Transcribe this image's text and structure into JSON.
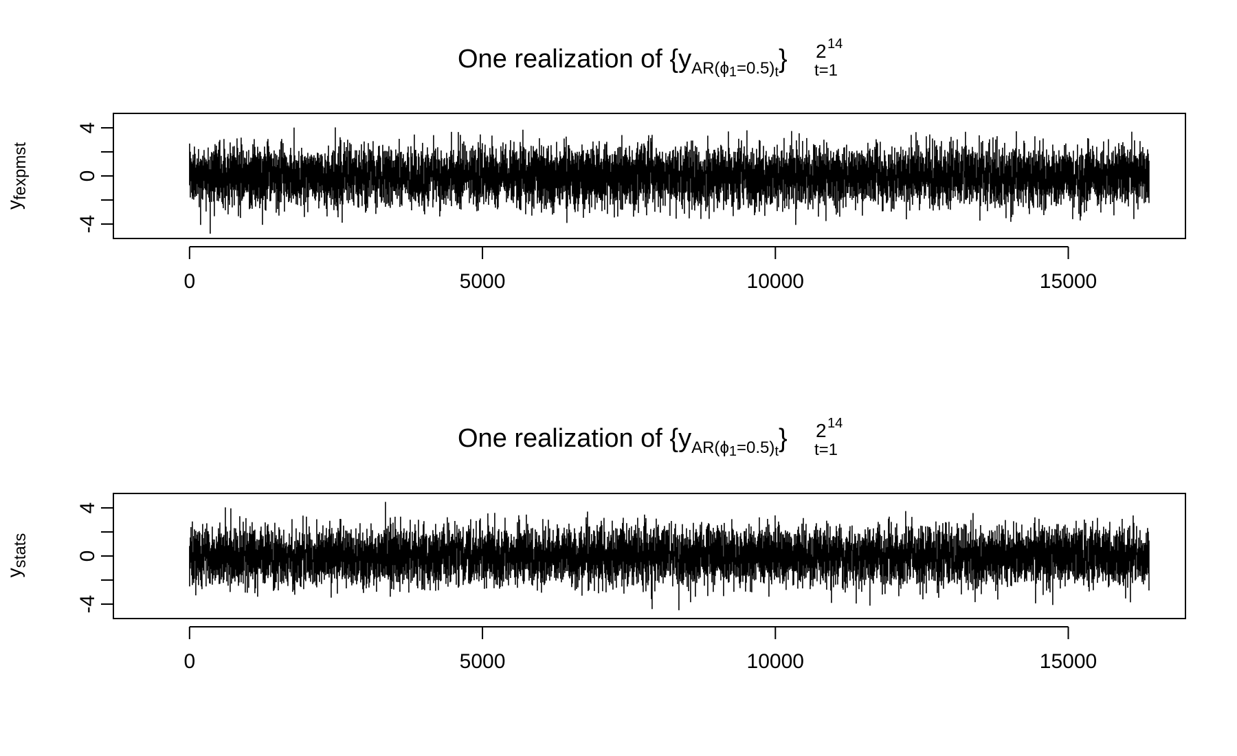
{
  "chart_data": [
    {
      "type": "line",
      "title": {
        "prefix": "One realization of {y",
        "subscript": "AR(",
        "phi": "ϕ",
        "phi_index": "1",
        "phi_value": "=0.5)",
        "inner_subscript": "t",
        "close": "}",
        "superscript_base": "2",
        "superscript_exp": "14",
        "lower_limit": "t=1"
      },
      "ylabel": {
        "base": "y",
        "subscript": "fexpmst"
      },
      "xlim": [
        -1300,
        17000
      ],
      "ylim": [
        -5.2,
        5.2
      ],
      "x_ticks": [
        0,
        5000,
        10000,
        15000
      ],
      "x_tick_labels": [
        "0",
        "5000",
        "10000",
        "15000"
      ],
      "y_ticks": [
        -4,
        -2,
        0,
        2,
        4
      ],
      "y_tick_labels": [
        "-4",
        "",
        "0",
        "",
        "4"
      ],
      "n": 16384,
      "phi_1": 0.5,
      "summary": {
        "max": 4.8,
        "min": -4.8,
        "typical_range": [
          -2.5,
          2.5
        ]
      }
    },
    {
      "type": "line",
      "title": {
        "prefix": "One realization of {y",
        "subscript": "AR(",
        "phi": "ϕ",
        "phi_index": "1",
        "phi_value": "=0.5)",
        "inner_subscript": "t",
        "close": "}",
        "superscript_base": "2",
        "superscript_exp": "14",
        "lower_limit": "t=1"
      },
      "ylabel": {
        "base": "y",
        "subscript": "stats"
      },
      "xlim": [
        -1300,
        17000
      ],
      "ylim": [
        -5.2,
        5.2
      ],
      "x_ticks": [
        0,
        5000,
        10000,
        15000
      ],
      "x_tick_labels": [
        "0",
        "5000",
        "10000",
        "15000"
      ],
      "y_ticks": [
        -4,
        -2,
        0,
        2,
        4
      ],
      "y_tick_labels": [
        "-4",
        "",
        "0",
        "",
        "4"
      ],
      "n": 16384,
      "phi_1": 0.5,
      "summary": {
        "max": 4.5,
        "min": -4.7,
        "typical_range": [
          -2.5,
          2.5
        ]
      }
    }
  ]
}
